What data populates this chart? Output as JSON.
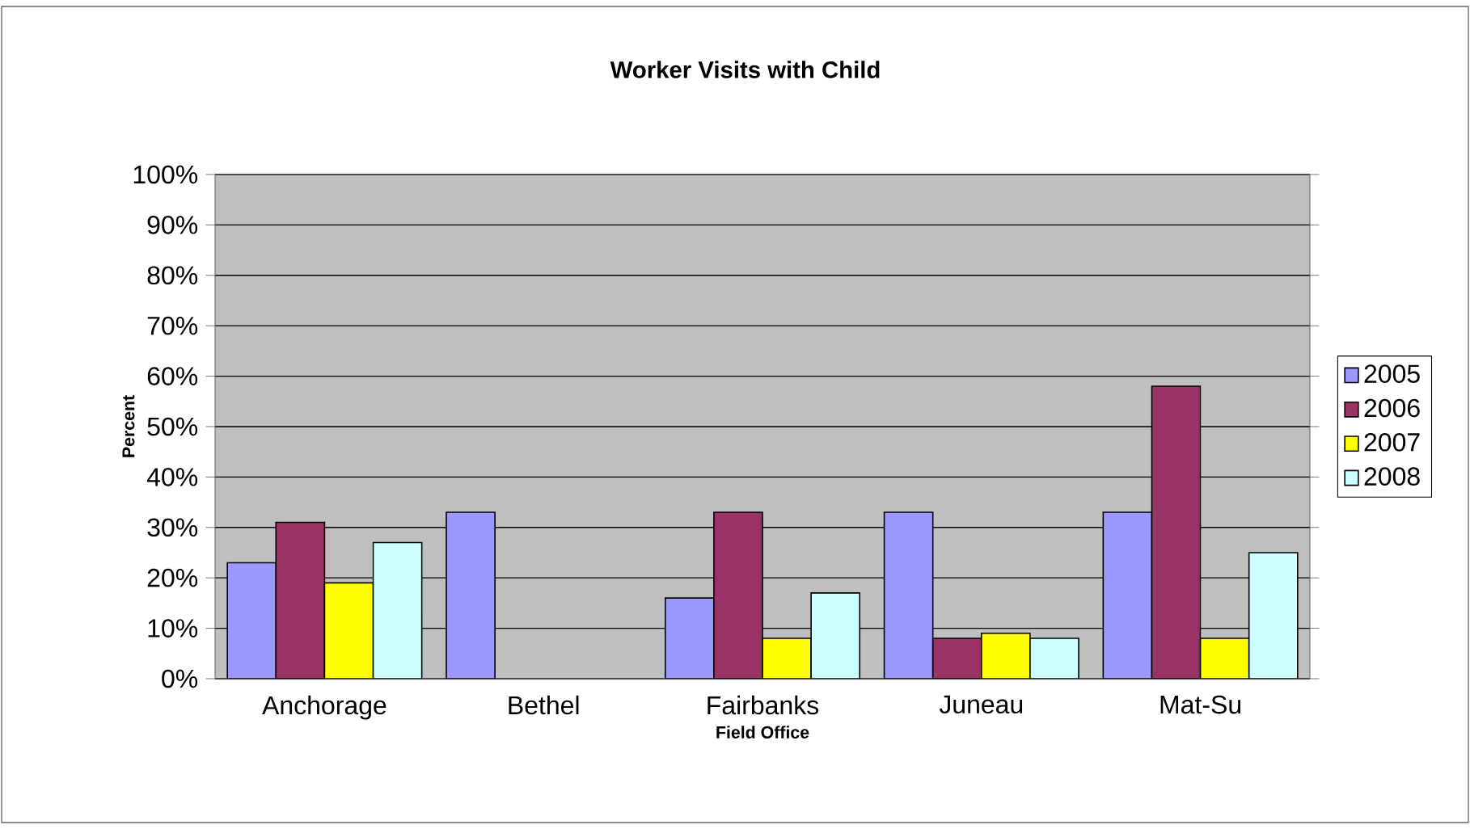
{
  "chart_data": {
    "type": "bar",
    "title": "Worker Visits with Child",
    "xlabel": "Field Office",
    "ylabel": "Percent",
    "categories": [
      "Anchorage",
      "Bethel",
      "Fairbanks",
      "Juneau",
      "Mat-Su"
    ],
    "series": [
      {
        "name": "2005",
        "color": "#9999ff",
        "values": [
          23,
          33,
          16,
          33,
          33
        ]
      },
      {
        "name": "2006",
        "color": "#993366",
        "values": [
          31,
          null,
          33,
          8,
          58
        ]
      },
      {
        "name": "2007",
        "color": "#ffff00",
        "values": [
          19,
          null,
          8,
          9,
          8
        ]
      },
      {
        "name": "2008",
        "color": "#ccffff",
        "values": [
          27,
          null,
          17,
          8,
          25
        ]
      }
    ],
    "ylim": [
      0,
      100
    ],
    "yticks": [
      {
        "value": 0,
        "label": "0%"
      },
      {
        "value": 10,
        "label": "10%"
      },
      {
        "value": 20,
        "label": "20%"
      },
      {
        "value": 30,
        "label": "30%"
      },
      {
        "value": 40,
        "label": "40%"
      },
      {
        "value": 50,
        "label": "50%"
      },
      {
        "value": 60,
        "label": "60%"
      },
      {
        "value": 70,
        "label": "70%"
      },
      {
        "value": 80,
        "label": "80%"
      },
      {
        "value": 90,
        "label": "90%"
      },
      {
        "value": 100,
        "label": "100%"
      }
    ],
    "grid": "y",
    "legend": "right"
  }
}
